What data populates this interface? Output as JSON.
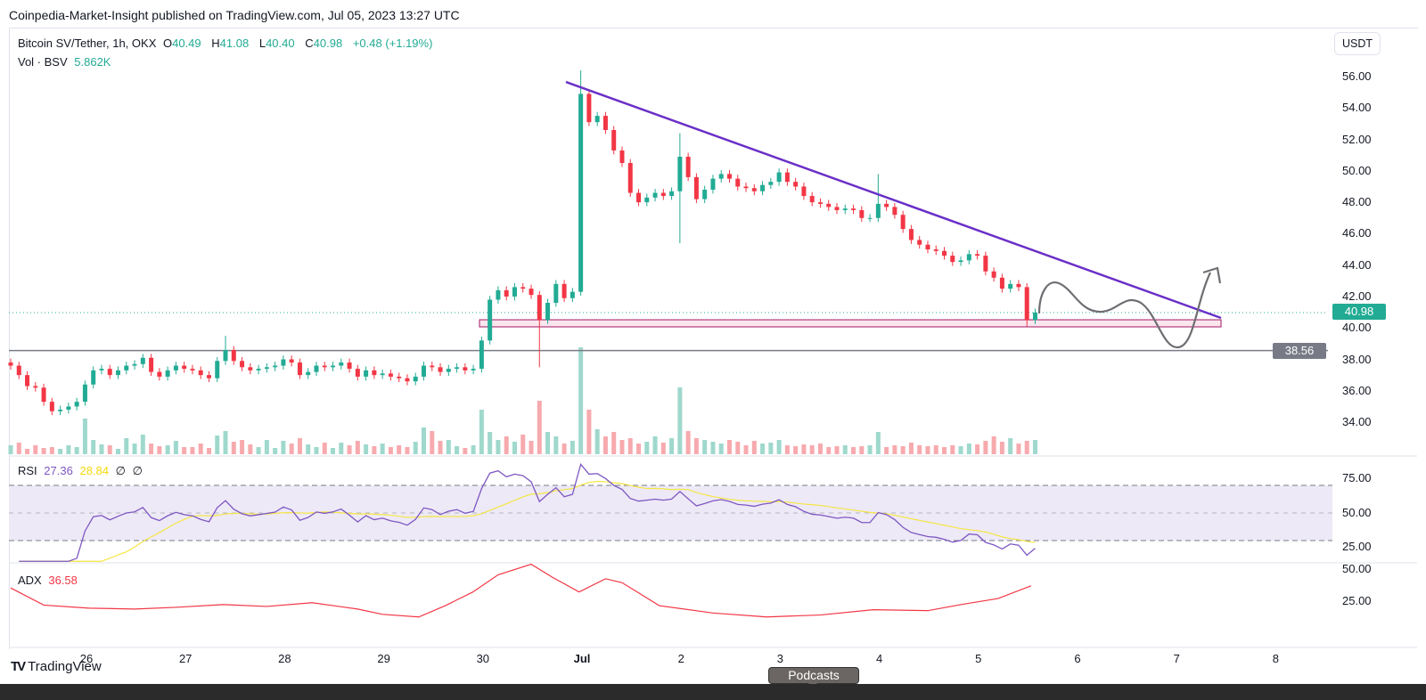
{
  "publish_line": "Coinpedia-Market-Insight published on TradingView.com, Jul 05, 2023 13:27 UTC",
  "legend": {
    "symbol": "Bitcoin SV/Tether, 1h, OKX",
    "o_label": "O",
    "o": "40.49",
    "h_label": "H",
    "h": "41.08",
    "l_label": "L",
    "l": "40.40",
    "c_label": "C",
    "c": "40.98",
    "change": "+0.48 (+1.19%)",
    "vol_label": "Vol · BSV",
    "vol": "5.862K"
  },
  "currency": "USDT",
  "price_axis": [
    "56.00",
    "54.00",
    "52.00",
    "50.00",
    "48.00",
    "46.00",
    "44.00",
    "42.00",
    "40.00",
    "38.00",
    "36.00",
    "34.00"
  ],
  "last_price_tag": "40.98",
  "support_tag": "38.56",
  "rsi": {
    "label": "RSI",
    "value": "27.36",
    "ma": "28.84",
    "icon1": "∅",
    "icon2": "∅",
    "axis": [
      "75.00",
      "50.00",
      "25.00"
    ]
  },
  "adx": {
    "label": "ADX",
    "value": "36.58",
    "axis": [
      "50.00",
      "25.00"
    ]
  },
  "time_axis": [
    "26",
    "27",
    "28",
    "29",
    "30",
    "Jul",
    "2",
    "3",
    "4",
    "5",
    "6",
    "7",
    "8"
  ],
  "footer": {
    "brand": "TradingView",
    "tooltip": "Podcasts"
  },
  "colors": {
    "up": "#22ab94",
    "down": "#f23645",
    "trendline": "#6a2fc7",
    "zone": "#b03a7a",
    "rsi": "#7e57c2",
    "rsi_ma": "#f5e642",
    "adx": "#f23645",
    "support": "#787b86"
  },
  "chart_data": {
    "type": "candlestick",
    "bar_interval_hours": 2,
    "closes": [
      37.6,
      37.0,
      36.3,
      36.2,
      35.3,
      34.7,
      34.8,
      35.0,
      35.3,
      36.4,
      37.3,
      37.4,
      37.0,
      37.3,
      37.6,
      37.7,
      38.1,
      37.2,
      36.9,
      37.3,
      37.6,
      37.4,
      37.3,
      37.0,
      36.8,
      37.9,
      38.6,
      37.9,
      37.5,
      37.3,
      37.4,
      37.5,
      37.6,
      38.0,
      37.8,
      37.0,
      37.2,
      37.6,
      37.5,
      37.6,
      37.8,
      37.4,
      36.9,
      37.3,
      37.0,
      37.1,
      36.9,
      36.8,
      36.6,
      36.9,
      37.6,
      37.5,
      37.2,
      37.4,
      37.5,
      37.3,
      37.4,
      39.2,
      41.8,
      42.4,
      42.0,
      42.6,
      42.5,
      42.1,
      40.5,
      41.6,
      42.8,
      41.9,
      42.3,
      54.9,
      53.1,
      53.5,
      52.6,
      51.3,
      50.5,
      48.6,
      48.0,
      48.3,
      48.6,
      48.4,
      48.7,
      50.9,
      49.6,
      48.2,
      48.8,
      49.5,
      49.8,
      49.5,
      49.0,
      48.9,
      48.7,
      49.1,
      49.3,
      49.9,
      49.3,
      49.0,
      48.4,
      48.0,
      47.9,
      47.7,
      47.5,
      47.6,
      47.5,
      47.0,
      47.0,
      47.9,
      47.7,
      47.2,
      46.3,
      45.6,
      45.3,
      45.0,
      44.9,
      44.6,
      44.2,
      44.3,
      44.7,
      44.6,
      43.6,
      43.2,
      42.5,
      42.8,
      42.6,
      40.5,
      40.98
    ],
    "wick_extremes": [
      {
        "bar": 26,
        "high": 39.5
      },
      {
        "bar": 64,
        "low": 37.5
      },
      {
        "bar": 69,
        "high": 56.4
      },
      {
        "bar": 81,
        "high": 52.4,
        "low": 45.4
      },
      {
        "bar": 105,
        "high": 49.8
      },
      {
        "bar": 123,
        "low": 40.1
      }
    ],
    "volumes_k": [
      1,
      1.3,
      0.6,
      1,
      0.7,
      0.8,
      0.6,
      1,
      0.8,
      4,
      1.6,
      1.1,
      1,
      0.6,
      1.8,
      1.2,
      2.2,
      1.2,
      0.9,
      1,
      1.5,
      0.8,
      0.8,
      1.2,
      0.7,
      2.1,
      2.6,
      1.4,
      1.6,
      1.1,
      0.8,
      1.6,
      0.7,
      1.5,
      1.2,
      1.8,
      1.1,
      0.8,
      1.3,
      0.7,
      1.3,
      1,
      1.5,
      1.1,
      0.9,
      1.2,
      0.8,
      1,
      0.8,
      1.4,
      3,
      2.6,
      1.5,
      1.6,
      0.9,
      0.7,
      1,
      5,
      2.5,
      1.6,
      2,
      1.4,
      2.2,
      1.5,
      6,
      2.5,
      2,
      1.2,
      1.5,
      12,
      5,
      2.8,
      2,
      2.5,
      1.6,
      1.8,
      1.2,
      1.4,
      2,
      1.3,
      1.8,
      7.5,
      2.6,
      1.8,
      1.6,
      1.4,
      1.2,
      1.6,
      1.4,
      1,
      1.5,
      1.2,
      1.3,
      1.6,
      1,
      0.9,
      1.1,
      1,
      1.2,
      0.8,
      0.9,
      1,
      0.8,
      0.9,
      1,
      2.5,
      0.8,
      1,
      0.9,
      1.3,
      1,
      0.9,
      1,
      0.8,
      1,
      0.9,
      1.2,
      1.1,
      1.5,
      2,
      1.4,
      1.8,
      1.2,
      1.5,
      1.6
    ],
    "adx_points": [
      [
        0,
        35
      ],
      [
        4,
        22
      ],
      [
        9.5,
        19.7
      ],
      [
        15,
        19
      ],
      [
        20,
        20.3
      ],
      [
        25.7,
        22.4
      ],
      [
        31,
        21
      ],
      [
        36.5,
        23.8
      ],
      [
        42,
        19
      ],
      [
        45,
        15
      ],
      [
        49.4,
        13
      ],
      [
        52.6,
        21.6
      ],
      [
        55.9,
        31.8
      ],
      [
        59,
        45
      ],
      [
        63,
        53
      ],
      [
        65.6,
        43
      ],
      [
        68.8,
        32
      ],
      [
        72,
        42
      ],
      [
        74,
        39
      ],
      [
        78.5,
        21.6
      ],
      [
        85,
        16
      ],
      [
        91.5,
        13
      ],
      [
        98,
        14.5
      ],
      [
        104.4,
        18.5
      ],
      [
        111,
        17.8
      ],
      [
        115.2,
        22.6
      ],
      [
        119.5,
        27
      ],
      [
        123.5,
        36.58
      ]
    ],
    "support_level": 38.56,
    "zone": [
      40.07,
      40.52
    ],
    "rsi_bands": [
      70,
      50,
      30
    ],
    "ylim": [
      33,
      57
    ]
  }
}
